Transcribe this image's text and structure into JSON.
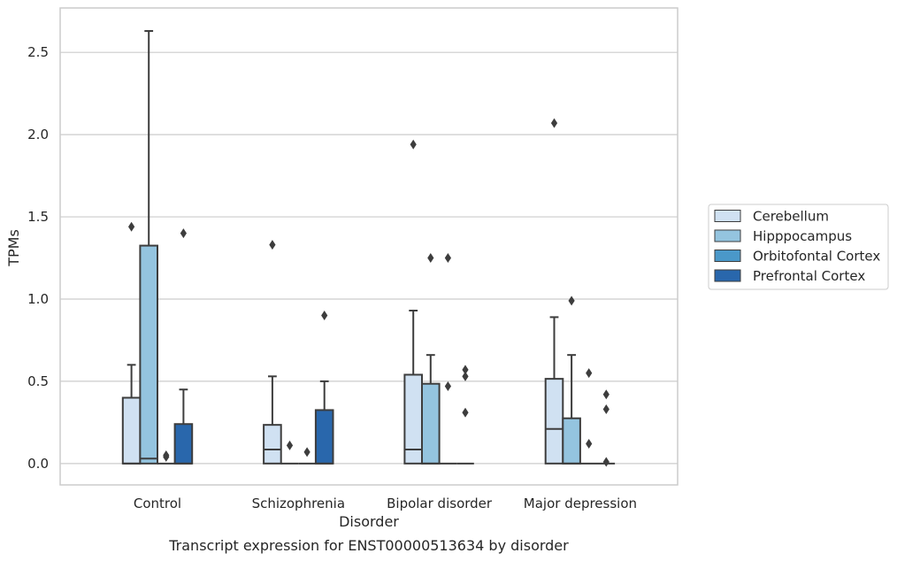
{
  "caption": "Transcript expression for ENST00000513634 by disorder",
  "chart_data": {
    "type": "box",
    "xlabel": "Disorder",
    "ylabel": "TPMs",
    "ylim": [
      -0.13,
      2.77
    ],
    "yticks": [
      "0.0",
      "0.5",
      "1.0",
      "1.5",
      "2.0",
      "2.5"
    ],
    "grid": true,
    "legend_position": "right",
    "categories": [
      "Control",
      "Schizophrenia",
      "Bipolar disorder",
      "Major depression"
    ],
    "series": [
      {
        "name": "Cerebellum",
        "color": "#d0e1f2",
        "boxes": [
          {
            "category": "Control",
            "q1": 0.0,
            "median": 0.0,
            "q3": 0.4,
            "whisker_low": 0.0,
            "whisker_high": 0.6,
            "outliers": [
              1.44
            ]
          },
          {
            "category": "Schizophrenia",
            "q1": 0.0,
            "median": 0.085,
            "q3": 0.235,
            "whisker_low": 0.0,
            "whisker_high": 0.53,
            "outliers": [
              1.33
            ]
          },
          {
            "category": "Bipolar disorder",
            "q1": 0.0,
            "median": 0.085,
            "q3": 0.54,
            "whisker_low": 0.0,
            "whisker_high": 0.93,
            "outliers": [
              1.94
            ]
          },
          {
            "category": "Major depression",
            "q1": 0.0,
            "median": 0.21,
            "q3": 0.515,
            "whisker_low": 0.0,
            "whisker_high": 0.89,
            "outliers": [
              2.07
            ]
          }
        ]
      },
      {
        "name": "Hipppocampus",
        "color": "#94c4df",
        "boxes": [
          {
            "category": "Control",
            "q1": 0.0,
            "median": 0.03,
            "q3": 1.325,
            "whisker_low": 0.0,
            "whisker_high": 2.63,
            "outliers": []
          },
          {
            "category": "Schizophrenia",
            "q1": 0.0,
            "median": 0.0,
            "q3": 0.0,
            "whisker_low": 0.0,
            "whisker_high": 0.0,
            "outliers": [
              0.11
            ]
          },
          {
            "category": "Bipolar disorder",
            "q1": 0.0,
            "median": 0.0,
            "q3": 0.485,
            "whisker_low": 0.0,
            "whisker_high": 0.66,
            "outliers": [
              1.25
            ]
          },
          {
            "category": "Major depression",
            "q1": 0.0,
            "median": 0.0,
            "q3": 0.275,
            "whisker_low": 0.0,
            "whisker_high": 0.66,
            "outliers": [
              0.99
            ]
          }
        ]
      },
      {
        "name": "Orbitofontal Cortex",
        "color": "#4a98c9",
        "boxes": [
          {
            "category": "Control",
            "q1": 0.0,
            "median": 0.0,
            "q3": 0.0,
            "whisker_low": 0.0,
            "whisker_high": 0.0,
            "outliers": [
              0.04,
              0.05
            ]
          },
          {
            "category": "Schizophrenia",
            "q1": 0.0,
            "median": 0.0,
            "q3": 0.0,
            "whisker_low": 0.0,
            "whisker_high": 0.0,
            "outliers": [
              0.07
            ]
          },
          {
            "category": "Bipolar disorder",
            "q1": 0.0,
            "median": 0.0,
            "q3": 0.0,
            "whisker_low": 0.0,
            "whisker_high": 0.0,
            "outliers": [
              0.47,
              1.25
            ]
          },
          {
            "category": "Major depression",
            "q1": 0.0,
            "median": 0.0,
            "q3": 0.0,
            "whisker_low": 0.0,
            "whisker_high": 0.0,
            "outliers": [
              0.12,
              0.55
            ]
          }
        ]
      },
      {
        "name": "Prefrontal Cortex",
        "color": "#2967ac",
        "boxes": [
          {
            "category": "Control",
            "q1": 0.0,
            "median": 0.0,
            "q3": 0.24,
            "whisker_low": 0.0,
            "whisker_high": 0.45,
            "outliers": [
              1.4
            ]
          },
          {
            "category": "Schizophrenia",
            "q1": 0.0,
            "median": 0.0,
            "q3": 0.325,
            "whisker_low": 0.0,
            "whisker_high": 0.5,
            "outliers": [
              0.9
            ]
          },
          {
            "category": "Bipolar disorder",
            "q1": 0.0,
            "median": 0.0,
            "q3": 0.0,
            "whisker_low": 0.0,
            "whisker_high": 0.0,
            "outliers": [
              0.31,
              0.53,
              0.57
            ]
          },
          {
            "category": "Major depression",
            "q1": 0.0,
            "median": 0.0,
            "q3": 0.0,
            "whisker_low": 0.0,
            "whisker_high": 0.0,
            "outliers": [
              0.01,
              0.33,
              0.42
            ]
          }
        ]
      }
    ]
  }
}
